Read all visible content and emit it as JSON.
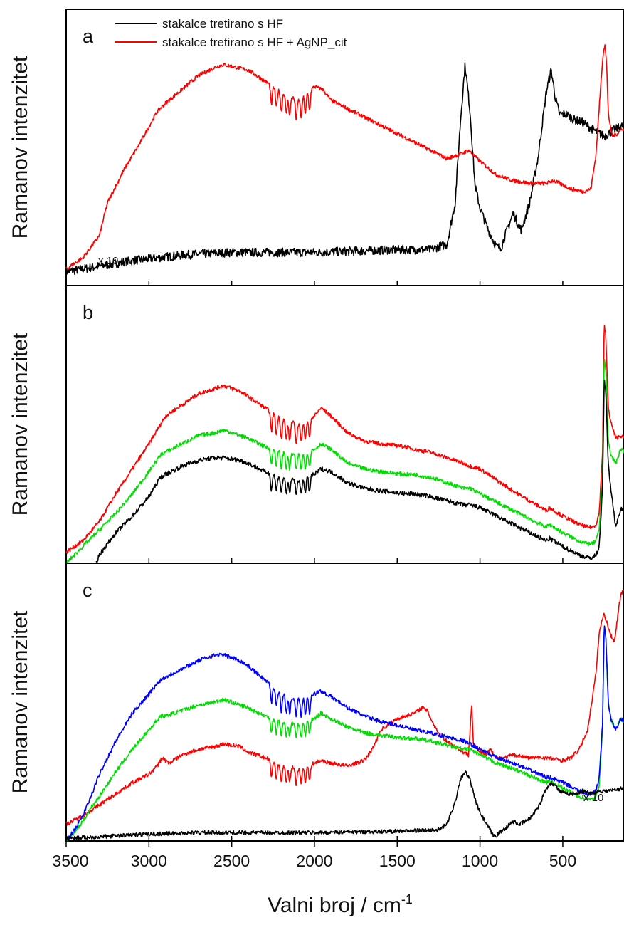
{
  "figure": {
    "xlabel_main": "Valni broj / cm",
    "xlabel_sup": "-1",
    "ylabel": "Ramanov intenzitet",
    "xlim": [
      3500,
      130
    ],
    "xticks": [
      "3500",
      "3000",
      "2500",
      "2000",
      "1500",
      "1000",
      "500"
    ],
    "xtick_values": [
      3500,
      3000,
      2500,
      2000,
      1500,
      1000,
      500
    ]
  },
  "legend": {
    "items": [
      {
        "label": "stakalce tretirano s HF",
        "color": "#000000"
      },
      {
        "label": "stakalce tretirano s HF + AgNP_cit",
        "color": "#ff0000"
      }
    ]
  },
  "panels": {
    "a": {
      "label": "a",
      "annotation": "x 10"
    },
    "b": {
      "label": "b"
    },
    "c": {
      "label": "c",
      "annotation": "x 10"
    }
  },
  "chart_data": [
    {
      "type": "line",
      "panel": "a",
      "xlabel": "",
      "ylabel": "Ramanov intenzitet",
      "xlim": [
        3500,
        130
      ],
      "ylim": [
        0,
        100
      ],
      "series": [
        {
          "name": "stakalce tretirano s HF",
          "color": "#000000",
          "noise": 1.6,
          "x": [
            3500,
            3300,
            3100,
            2800,
            2500,
            2000,
            1500,
            1300,
            1200,
            1150,
            1120,
            1090,
            1060,
            1030,
            1000,
            950,
            900,
            870,
            850,
            800,
            750,
            700,
            650,
            600,
            570,
            545,
            520,
            480,
            430,
            380,
            330,
            280,
            250,
            200,
            130
          ],
          "y": [
            5,
            7,
            9,
            11,
            12,
            12,
            13,
            13,
            15,
            30,
            58,
            80,
            63,
            36,
            28,
            20,
            14,
            14,
            18,
            26,
            20,
            30,
            46,
            70,
            78,
            68,
            62,
            62,
            60,
            59,
            57,
            55,
            54,
            56,
            58
          ]
        },
        {
          "name": "stakalce tretirano s HF + AgNP_cit",
          "color": "#ff0000",
          "noise": 0.7,
          "bands": 1,
          "x": [
            3500,
            3400,
            3300,
            3250,
            3150,
            3050,
            2950,
            2900,
            2800,
            2700,
            2600,
            2550,
            2400,
            2300,
            2200,
            2100,
            2000,
            1950,
            1900,
            1700,
            1500,
            1300,
            1200,
            1100,
            1070,
            1000,
            900,
            800,
            700,
            600,
            560,
            520,
            450,
            380,
            330,
            300,
            270,
            255,
            245,
            235,
            225,
            215,
            200,
            170,
            140,
            130
          ],
          "y": [
            6,
            10,
            18,
            30,
            42,
            52,
            63,
            66,
            71,
            76,
            79,
            80,
            78,
            74,
            70,
            67,
            72,
            71,
            67,
            61,
            55,
            49,
            46,
            48,
            49,
            45,
            40,
            38,
            37,
            37,
            38,
            37,
            35,
            34,
            35,
            47,
            73,
            85,
            87,
            80,
            63,
            58,
            54,
            55,
            57,
            56
          ]
        }
      ]
    },
    {
      "type": "line",
      "panel": "b",
      "xlabel": "",
      "ylabel": "Ramanov intenzitet",
      "xlim": [
        3500,
        130
      ],
      "ylim": [
        0,
        100
      ],
      "series": [
        {
          "color": "#ff0000",
          "noise": 0.7,
          "bands": 1,
          "x": [
            3500,
            3400,
            3300,
            3200,
            3100,
            3000,
            2920,
            2900,
            2800,
            2700,
            2600,
            2550,
            2450,
            2400,
            2300,
            2200,
            2100,
            2000,
            1960,
            1900,
            1800,
            1700,
            1600,
            1450,
            1400,
            1300,
            1100,
            1060,
            1000,
            900,
            800,
            600,
            580,
            500,
            400,
            350,
            320,
            300,
            280,
            260,
            250,
            240,
            225,
            210,
            180,
            150,
            130
          ],
          "y": [
            4,
            8,
            15,
            25,
            34,
            43,
            51,
            53,
            57,
            61,
            63,
            64,
            62,
            60,
            56,
            52,
            50,
            53,
            56,
            53,
            47,
            44,
            43,
            42,
            41,
            40,
            36,
            35,
            34,
            30,
            26,
            19,
            20,
            17,
            14,
            13,
            13,
            14,
            18,
            40,
            86,
            82,
            56,
            51,
            45,
            46,
            45
          ]
        },
        {
          "color": "#00dd00",
          "noise": 0.7,
          "bands": 0.8,
          "x": [
            3500,
            3450,
            3400,
            3350,
            3300,
            3200,
            3100,
            3000,
            2930,
            2900,
            2800,
            2700,
            2600,
            2550,
            2450,
            2400,
            2300,
            2200,
            2100,
            2000,
            1960,
            1900,
            1800,
            1700,
            1600,
            1450,
            1400,
            1300,
            1100,
            1060,
            1000,
            900,
            800,
            600,
            580,
            500,
            400,
            350,
            320,
            300,
            280,
            260,
            250,
            240,
            225,
            210,
            180,
            150,
            130
          ],
          "y": [
            0,
            3,
            6,
            9,
            12,
            18,
            25,
            33,
            39,
            40,
            43,
            46,
            47,
            48,
            46,
            45,
            42,
            40,
            39,
            41,
            43,
            41,
            36,
            34,
            33,
            32,
            32,
            31,
            27,
            27,
            25,
            22,
            19,
            13,
            14,
            11,
            8,
            7,
            7,
            8,
            12,
            33,
            74,
            70,
            44,
            39,
            36,
            41,
            40
          ]
        },
        {
          "color": "#000000",
          "noise": 0.8,
          "bands": 0.8,
          "x": [
            3320,
            3300,
            3250,
            3200,
            3100,
            3000,
            2930,
            2900,
            2800,
            2700,
            2600,
            2550,
            2450,
            2400,
            2300,
            2200,
            2100,
            2000,
            1960,
            1900,
            1800,
            1700,
            1600,
            1450,
            1400,
            1300,
            1100,
            1060,
            1000,
            900,
            800,
            600,
            580,
            500,
            400,
            350,
            320,
            300,
            280,
            260,
            250,
            240,
            225,
            210,
            180,
            150,
            130
          ],
          "y": [
            0,
            3,
            7,
            11,
            17,
            24,
            31,
            32,
            35,
            37,
            38,
            38,
            37,
            36,
            33,
            31,
            30,
            32,
            34,
            33,
            29,
            27,
            26,
            25,
            25,
            24,
            21,
            21,
            20,
            17,
            14,
            8,
            9,
            6,
            3,
            2,
            2,
            3,
            6,
            27,
            66,
            62,
            36,
            27,
            13,
            20,
            19
          ]
        }
      ]
    },
    {
      "type": "line",
      "panel": "c",
      "xlabel": "Valni broj / cm-1",
      "ylabel": "Ramanov intenzitet",
      "xlim": [
        3500,
        130
      ],
      "ylim": [
        0,
        100
      ],
      "series": [
        {
          "color": "#ff0000",
          "noise": 0.7,
          "bands": 0.8,
          "x": [
            3500,
            3400,
            3300,
            3200,
            3100,
            3000,
            2950,
            2920,
            2880,
            2800,
            2700,
            2600,
            2550,
            2450,
            2400,
            2300,
            2200,
            2100,
            2000,
            1960,
            1900,
            1800,
            1700,
            1650,
            1600,
            1550,
            1500,
            1450,
            1400,
            1350,
            1320,
            1280,
            1240,
            1200,
            1150,
            1100,
            1070,
            1060,
            1050,
            1040,
            1000,
            960,
            940,
            900,
            850,
            800,
            700,
            600,
            500,
            450,
            400,
            350,
            300,
            280,
            260,
            250,
            240,
            230,
            210,
            190,
            180,
            170,
            160,
            150,
            140,
            130
          ],
          "y": [
            6,
            9,
            13,
            17,
            21,
            24,
            27,
            30,
            28,
            31,
            33,
            34,
            35,
            34,
            32,
            30,
            27,
            26,
            28,
            29,
            28,
            27,
            29,
            33,
            40,
            42,
            44,
            45,
            46,
            48,
            47,
            42,
            38,
            36,
            34,
            32,
            31,
            40,
            50,
            35,
            32,
            31,
            33,
            30,
            30,
            31,
            30,
            30,
            29,
            30,
            33,
            40,
            60,
            75,
            80,
            82,
            80,
            78,
            74,
            72,
            75,
            80,
            85,
            88,
            90,
            91
          ]
        },
        {
          "color": "#00dd00",
          "noise": 0.7,
          "bands": 0.7,
          "x": [
            3500,
            3450,
            3400,
            3350,
            3300,
            3200,
            3100,
            3000,
            2930,
            2900,
            2800,
            2700,
            2600,
            2550,
            2450,
            2400,
            2300,
            2200,
            2100,
            2000,
            1960,
            1900,
            1800,
            1700,
            1600,
            1450,
            1400,
            1300,
            1100,
            1060,
            1000,
            900,
            800,
            600,
            580,
            500,
            400,
            350,
            320,
            300,
            280,
            260,
            250,
            240,
            225,
            210,
            180,
            150,
            130
          ],
          "y": [
            0,
            3,
            7,
            12,
            16,
            25,
            33,
            40,
            45,
            45,
            47,
            49,
            50,
            51,
            49,
            48,
            45,
            43,
            42,
            44,
            46,
            44,
            41,
            39,
            38,
            37,
            37,
            36,
            33,
            33,
            31,
            28,
            26,
            21,
            22,
            19,
            16,
            15,
            15,
            16,
            20,
            40,
            78,
            74,
            50,
            44,
            40,
            44,
            43
          ]
        },
        {
          "color": "#0000ff",
          "noise": 0.7,
          "bands": 0.9,
          "x": [
            3500,
            3450,
            3400,
            3350,
            3300,
            3200,
            3100,
            3000,
            2930,
            2900,
            2800,
            2700,
            2600,
            2550,
            2450,
            2400,
            2300,
            2200,
            2100,
            2000,
            1960,
            1900,
            1800,
            1700,
            1600,
            1450,
            1400,
            1300,
            1100,
            1060,
            1000,
            900,
            800,
            600,
            580,
            500,
            400,
            350,
            320,
            300,
            280,
            260,
            250,
            240,
            225,
            210,
            180,
            150,
            130
          ],
          "y": [
            0,
            4,
            9,
            16,
            24,
            36,
            46,
            53,
            58,
            59,
            62,
            65,
            67,
            67,
            65,
            63,
            58,
            53,
            51,
            53,
            54,
            52,
            48,
            45,
            43,
            41,
            40,
            39,
            36,
            35,
            33,
            30,
            28,
            23,
            23,
            21,
            18,
            17,
            17,
            18,
            23,
            42,
            78,
            74,
            50,
            44,
            40,
            44,
            43
          ]
        },
        {
          "name": "stakalce tretirano s HF",
          "color": "#000000",
          "noise": 0.7,
          "x": [
            3500,
            3300,
            3000,
            2700,
            2400,
            2000,
            1500,
            1250,
            1200,
            1150,
            1120,
            1090,
            1060,
            1030,
            1000,
            950,
            920,
            900,
            860,
            820,
            800,
            760,
            700,
            640,
            600,
            570,
            545,
            520,
            480,
            430,
            380,
            330,
            280,
            230,
            180,
            130
          ],
          "y": [
            1,
            1.5,
            2.5,
            3,
            3,
            3,
            3.5,
            4,
            6,
            14,
            22,
            25,
            22,
            15,
            10,
            5,
            2,
            2,
            4,
            6,
            7,
            6,
            8,
            13,
            19,
            21,
            20,
            18,
            17,
            17,
            18,
            17,
            18,
            18,
            18.5,
            19
          ]
        }
      ]
    }
  ]
}
